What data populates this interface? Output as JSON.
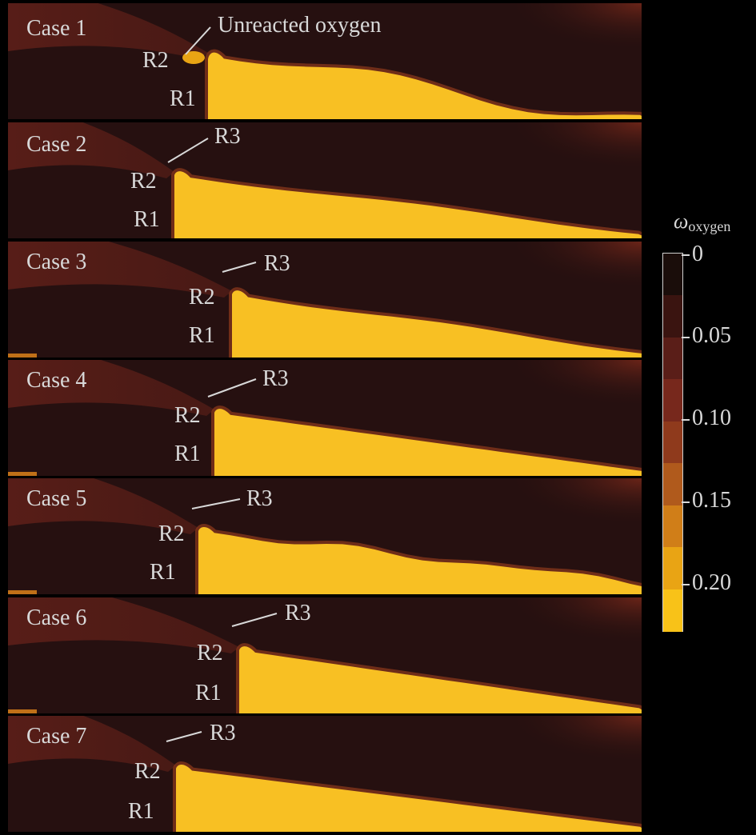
{
  "panels": [
    {
      "case_label": "Case 1",
      "r1": "R1",
      "r2": "R2",
      "annotation": "Unreacted oxygen"
    },
    {
      "case_label": "Case 2",
      "r1": "R1",
      "r2": "R2",
      "annotation": "R3"
    },
    {
      "case_label": "Case 3",
      "r1": "R1",
      "r2": "R2",
      "annotation": "R3"
    },
    {
      "case_label": "Case 4",
      "r1": "R1",
      "r2": "R2",
      "annotation": "R3"
    },
    {
      "case_label": "Case 5",
      "r1": "R1",
      "r2": "R2",
      "annotation": "R3"
    },
    {
      "case_label": "Case 6",
      "r1": "R1",
      "r2": "R2",
      "annotation": "R3"
    },
    {
      "case_label": "Case 7",
      "r1": "R1",
      "r2": "R2",
      "annotation": "R3"
    }
  ],
  "colorbar": {
    "symbol": "ω",
    "subscript": "oxygen",
    "ticks": [
      "0",
      "0.05",
      "0.10",
      "0.15",
      "0.20"
    ],
    "colors": [
      "#1a0d0a",
      "#3a1410",
      "#5a1e18",
      "#77281c",
      "#8f3a1c",
      "#b05a1c",
      "#d07e18",
      "#e9a414",
      "#f8c218"
    ]
  },
  "colors": {
    "background": "#000000",
    "low_oxygen": "#261010",
    "shear_layer": "#5a1e18",
    "oxygen_core": "#f8c023",
    "text": "#d8d8d8"
  }
}
